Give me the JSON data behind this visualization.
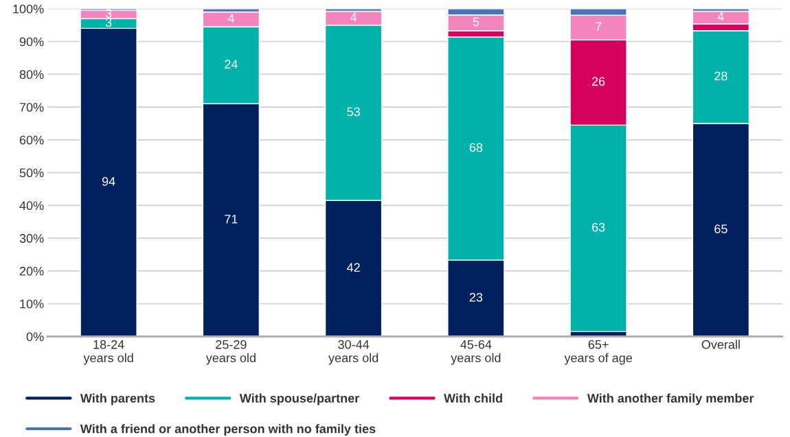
{
  "chart_data": {
    "type": "bar",
    "stacked": true,
    "categories": [
      "18-24\nyears old",
      "25-29\nyears old",
      "30-44\nyears old",
      "45-64\nyears old",
      "65+\nyears of age",
      "Overall"
    ],
    "series": [
      {
        "name": "With parents",
        "color": "#00215e",
        "values": [
          94,
          71,
          41.5,
          23.3,
          1.5,
          65
        ],
        "value_labels": [
          "94",
          "71",
          "42",
          "23",
          null,
          "65"
        ]
      },
      {
        "name": "With spouse/partner",
        "color": "#00b2a9",
        "values": [
          3,
          23.5,
          53.5,
          68.1,
          63,
          28.3
        ],
        "value_labels": [
          "3",
          "24",
          "53",
          "68",
          "63",
          "28"
        ]
      },
      {
        "name": "With child",
        "color": "#d6005f",
        "values": [
          0,
          0,
          0,
          1.9,
          26,
          2.1
        ],
        "value_labels": [
          null,
          null,
          null,
          null,
          "26",
          null
        ]
      },
      {
        "name": "With another family member",
        "color": "#f484bb",
        "values": [
          2.5,
          4.5,
          4.2,
          4.8,
          7.5,
          3.8
        ],
        "value_labels": [
          "3",
          "4",
          "4",
          "5",
          "7",
          "4"
        ]
      },
      {
        "name": "With a friend or another person with no family ties",
        "color": "#4873bb",
        "values": [
          0.5,
          1.0,
          0.8,
          1.9,
          2,
          0.8
        ],
        "value_labels": [
          null,
          null,
          null,
          null,
          null,
          null
        ]
      }
    ],
    "ylim": [
      0,
      100
    ],
    "yticks": [
      {
        "value": 0,
        "label": "0%"
      },
      {
        "value": 10,
        "label": "10%"
      },
      {
        "value": 20,
        "label": "20%"
      },
      {
        "value": 30,
        "label": "30%"
      },
      {
        "value": 40,
        "label": "40%"
      },
      {
        "value": 50,
        "label": "50%"
      },
      {
        "value": 60,
        "label": "60%"
      },
      {
        "value": 70,
        "label": "70%"
      },
      {
        "value": 80,
        "label": "80%"
      },
      {
        "value": 90,
        "label": "90%"
      },
      {
        "value": 100,
        "label": "100%"
      }
    ],
    "grid": "y",
    "legend": "bottom"
  }
}
